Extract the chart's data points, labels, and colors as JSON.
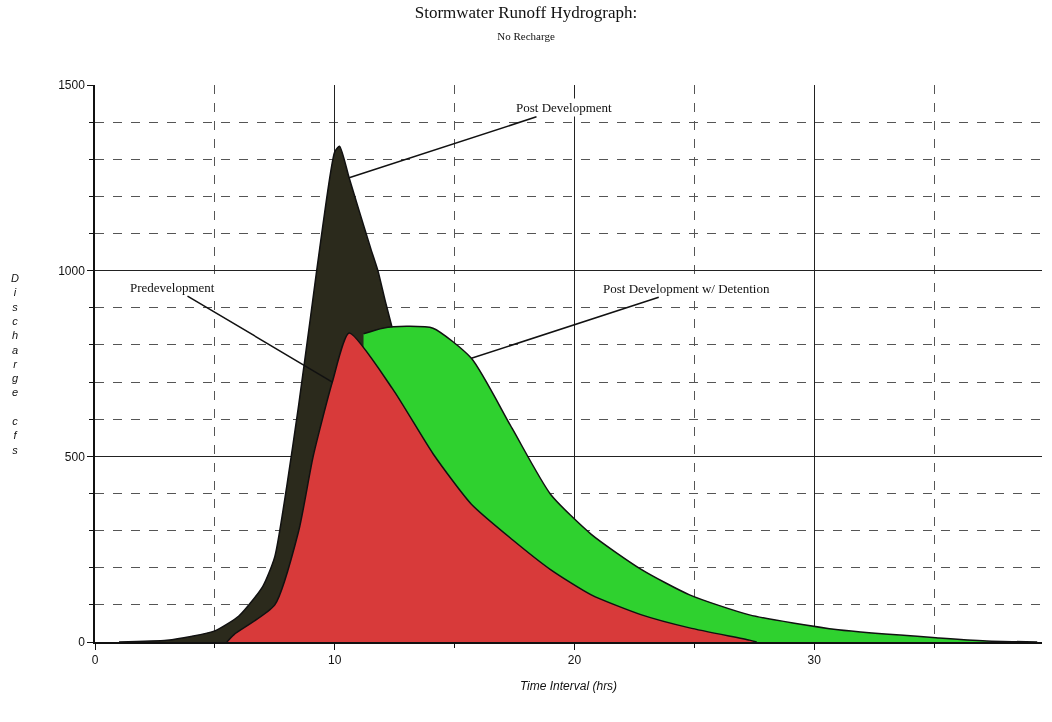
{
  "chart_data": {
    "type": "area",
    "title": "Stormwater Runoff Hydrograph:",
    "subtitle": "No Recharge",
    "xlabel": "Time Interval (hrs)",
    "ylabel": "Discharge cfs",
    "xlim": [
      0,
      39.5
    ],
    "ylim": [
      0,
      1500
    ],
    "xticks": [
      0,
      {
        "value": 5,
        "label": null
      },
      10,
      {
        "value": 15,
        "label": null
      },
      20,
      {
        "value": 25,
        "label": null
      },
      30,
      {
        "value": 35,
        "label": null
      }
    ],
    "yticks": [
      0,
      {
        "value": 100,
        "label": null
      },
      {
        "value": 200,
        "label": null
      },
      {
        "value": 300,
        "label": null
      },
      {
        "value": 400,
        "label": null
      },
      500,
      {
        "value": 600,
        "label": null
      },
      {
        "value": 700,
        "label": null
      },
      {
        "value": 800,
        "label": null
      },
      {
        "value": 900,
        "label": null
      },
      1000,
      {
        "value": 1100,
        "label": null
      },
      {
        "value": 1200,
        "label": null
      },
      {
        "value": 1300,
        "label": null
      },
      {
        "value": 1400,
        "label": null
      },
      1500
    ],
    "grid": true,
    "series": [
      {
        "color": "#2b2a1c",
        "x": [
          1,
          3,
          4,
          5,
          6,
          7,
          7.5,
          8,
          8.5,
          9,
          9.5,
          10,
          10.2,
          10.6,
          11,
          11.5,
          11.8,
          12.1,
          12.4
        ],
        "values": [
          0,
          5,
          15,
          30,
          70,
          150,
          230,
          420,
          640,
          880,
          1120,
          1320,
          1335,
          1250,
          1165,
          1060,
          1000,
          920,
          845
        ]
      },
      {
        "color": "#2fd12f",
        "x": [
          11.2,
          12,
          13,
          14.1,
          15.7,
          17.4,
          19,
          20.7,
          22.8,
          24.8,
          27.3,
          31,
          35.2,
          37.2,
          39.3
        ],
        "values": [
          830,
          845,
          850,
          845,
          764,
          575,
          398,
          290,
          195,
          127,
          73,
          33,
          11,
          3,
          0
        ]
      },
      {
        "color": "#d83a3a",
        "x": [
          5.5,
          5.8,
          7.5,
          8.5,
          9.1,
          9.9,
          10.6,
          12.4,
          14.1,
          15.7,
          17.4,
          19,
          20.7,
          22.8,
          24.8,
          27.3,
          27.6
        ],
        "values": [
          0,
          20,
          100,
          300,
          500,
          700,
          832,
          683,
          507,
          371,
          276,
          195,
          127,
          73,
          38,
          5,
          0
        ]
      }
    ],
    "annotations": [
      {
        "text": "Post Development",
        "x": 10.6,
        "y": 1250
      },
      {
        "text": "Predevelopment",
        "x": 9.9,
        "y": 700
      },
      {
        "text": "Post Development w/ Detention",
        "x": 15.7,
        "y": 764
      }
    ]
  }
}
